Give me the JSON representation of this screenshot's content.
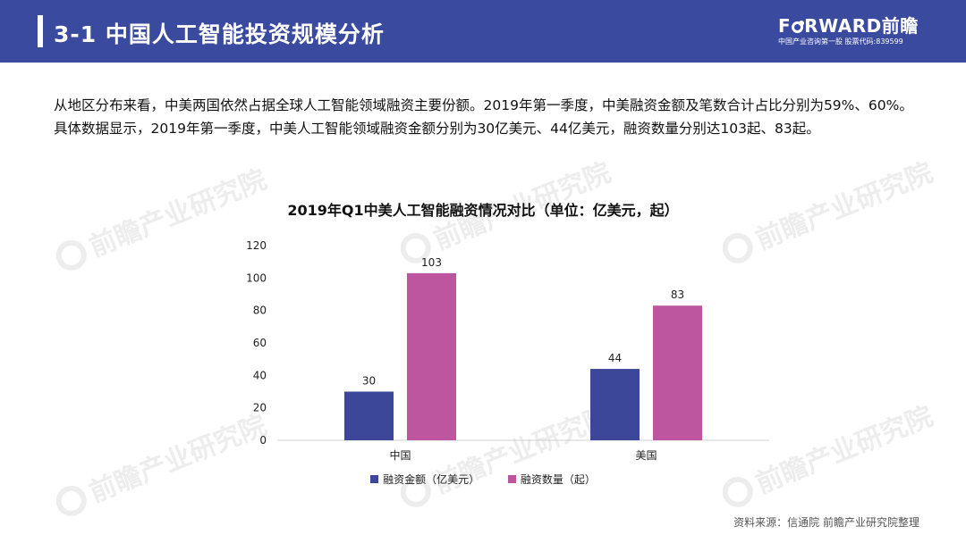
{
  "header": {
    "title": "3-1  中国人工智能投资规模分析",
    "brand_prefix": "F",
    "brand_suffix": "RWARD前瞻",
    "brand_tagline": "中国产业咨询第一股  股票代码:839599"
  },
  "intro": "从地区分布来看，中美两国依然占据全球人工智能领域融资主要份额。2019年第一季度，中美融资金额及笔数合计占比分别为59%、60%。具体数据显示，2019年第一季度，中美人工智能领域融资金额分别为30亿美元、44亿美元，融资数量分别达103起、83起。",
  "watermark_text": "前瞻产业研究院",
  "colors": {
    "header_bg": "#3a4a9f",
    "series_amount": "#3c479a",
    "series_count": "#bd569f"
  },
  "chart_data": {
    "type": "bar",
    "title": "2019年Q1中美人工智能融资情况对比（单位：亿美元，起）",
    "categories": [
      "中国",
      "美国"
    ],
    "series": [
      {
        "name": "融资金额（亿美元）",
        "values": [
          30,
          44
        ],
        "color": "#3c479a"
      },
      {
        "name": "融资数量（起）",
        "values": [
          103,
          83
        ],
        "color": "#bd569f"
      }
    ],
    "ylim": [
      0,
      120
    ],
    "yticks": [
      0,
      20,
      40,
      60,
      80,
      100,
      120
    ],
    "xlabel": "",
    "ylabel": "",
    "grid": false,
    "legend": "bottom"
  },
  "source": "资料来源：信通院 前瞻产业研究院整理"
}
